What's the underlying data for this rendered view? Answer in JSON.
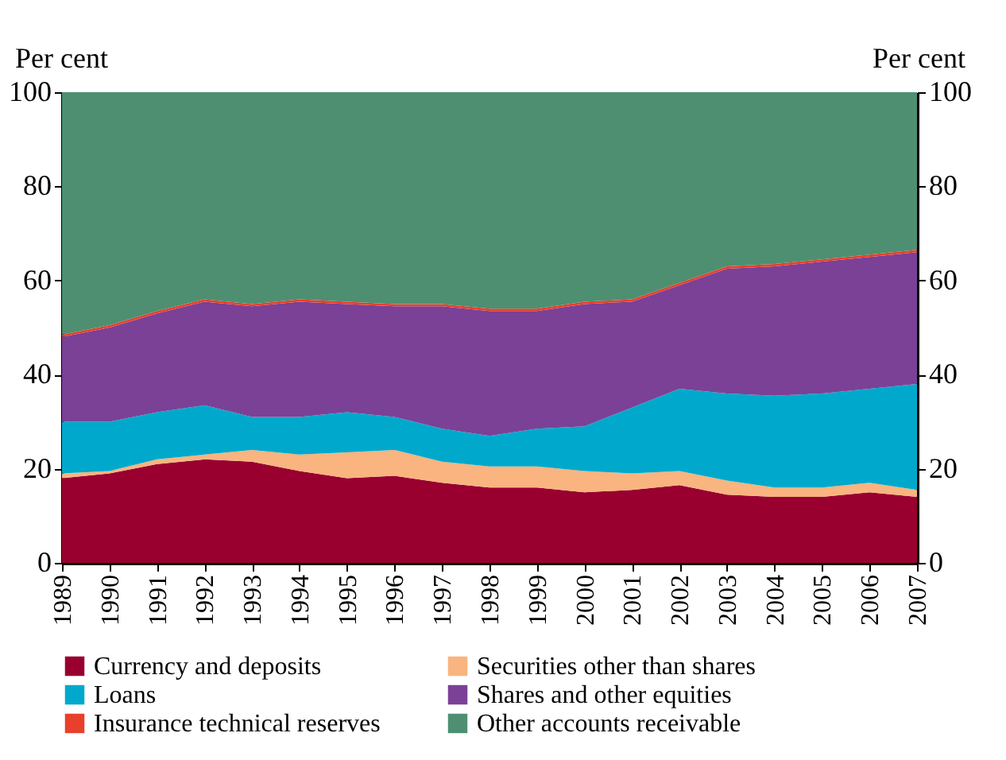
{
  "chart_data": {
    "type": "area",
    "stacked": true,
    "x": [
      1989,
      1990,
      1991,
      1992,
      1993,
      1994,
      1995,
      1996,
      1997,
      1998,
      1999,
      2000,
      2001,
      2002,
      2003,
      2004,
      2005,
      2006,
      2007
    ],
    "ylabel": "Per cent",
    "y2label": "Per cent",
    "xlim": [
      1989,
      2007
    ],
    "xticks": [
      1989,
      1990,
      1991,
      1992,
      1993,
      1994,
      1995,
      1996,
      1997,
      1998,
      1999,
      2000,
      2001,
      2002,
      2003,
      2004,
      2005,
      2006,
      2007
    ],
    "ylim": [
      0,
      100
    ],
    "yticks": [
      0,
      20,
      40,
      60,
      80,
      100
    ],
    "y2lim": [
      0,
      100
    ],
    "y2ticks": [
      0,
      20,
      40,
      60,
      80,
      100
    ],
    "grid": "y",
    "legend": "bottom",
    "series": [
      {
        "name": "Currency and deposits",
        "color": "#990030",
        "values": [
          18,
          19,
          21,
          22,
          21.5,
          19.5,
          18,
          18.5,
          17,
          16,
          16,
          15,
          15.5,
          16.5,
          14.5,
          14,
          14,
          15,
          14
        ]
      },
      {
        "name": "Securities other than shares",
        "color": "#f9b47f",
        "values": [
          1,
          0.5,
          1,
          1,
          2.5,
          3.5,
          5.5,
          5.5,
          4.5,
          4.5,
          4.5,
          4.5,
          3.5,
          3,
          3,
          2,
          2,
          2,
          1.5
        ]
      },
      {
        "name": "Loans",
        "color": "#00a9cc",
        "values": [
          11,
          10.5,
          10,
          10.5,
          7,
          8,
          8.5,
          7,
          7,
          6.5,
          8,
          9.5,
          14,
          17.5,
          18.5,
          19.5,
          20,
          20,
          22.5
        ]
      },
      {
        "name": "Shares and other equities",
        "color": "#7b4196",
        "values": [
          18,
          20,
          21,
          22,
          23.5,
          24.5,
          23,
          23.5,
          26,
          26.5,
          25,
          26,
          22.5,
          22,
          26.5,
          27.5,
          28,
          28,
          28
        ]
      },
      {
        "name": "Insurance technical reserves",
        "color": "#e8402b",
        "values": [
          0.5,
          0.5,
          0.5,
          0.5,
          0.5,
          0.5,
          0.5,
          0.5,
          0.5,
          0.5,
          0.5,
          0.5,
          0.5,
          0.5,
          0.5,
          0.5,
          0.5,
          0.5,
          0.5
        ]
      },
      {
        "name": "Other accounts receivable",
        "color": "#4e8f72",
        "values": [
          51.5,
          49.5,
          46.5,
          44,
          45,
          44,
          44.5,
          45,
          45,
          46,
          46,
          44.5,
          44,
          40.5,
          37,
          36.5,
          35.5,
          34.5,
          33.5
        ]
      }
    ]
  }
}
